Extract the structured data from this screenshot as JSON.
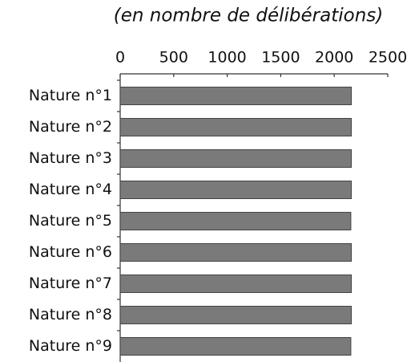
{
  "chart_data": {
    "type": "bar",
    "orientation": "horizontal",
    "title": "(en nombre de délibérations)",
    "categories": [
      "Nature n°1",
      "Nature n°2",
      "Nature n°3",
      "Nature n°4",
      "Nature n°5",
      "Nature n°6",
      "Nature n°7",
      "Nature n°8",
      "Nature n°9"
    ],
    "values": [
      2160,
      2160,
      2160,
      2160,
      2155,
      2160,
      2160,
      2160,
      2155
    ],
    "color": "#7a7a7a",
    "xlim": [
      0,
      2500
    ],
    "xticks": [
      0,
      500,
      1000,
      1500,
      2000,
      2500
    ],
    "grid": false
  }
}
